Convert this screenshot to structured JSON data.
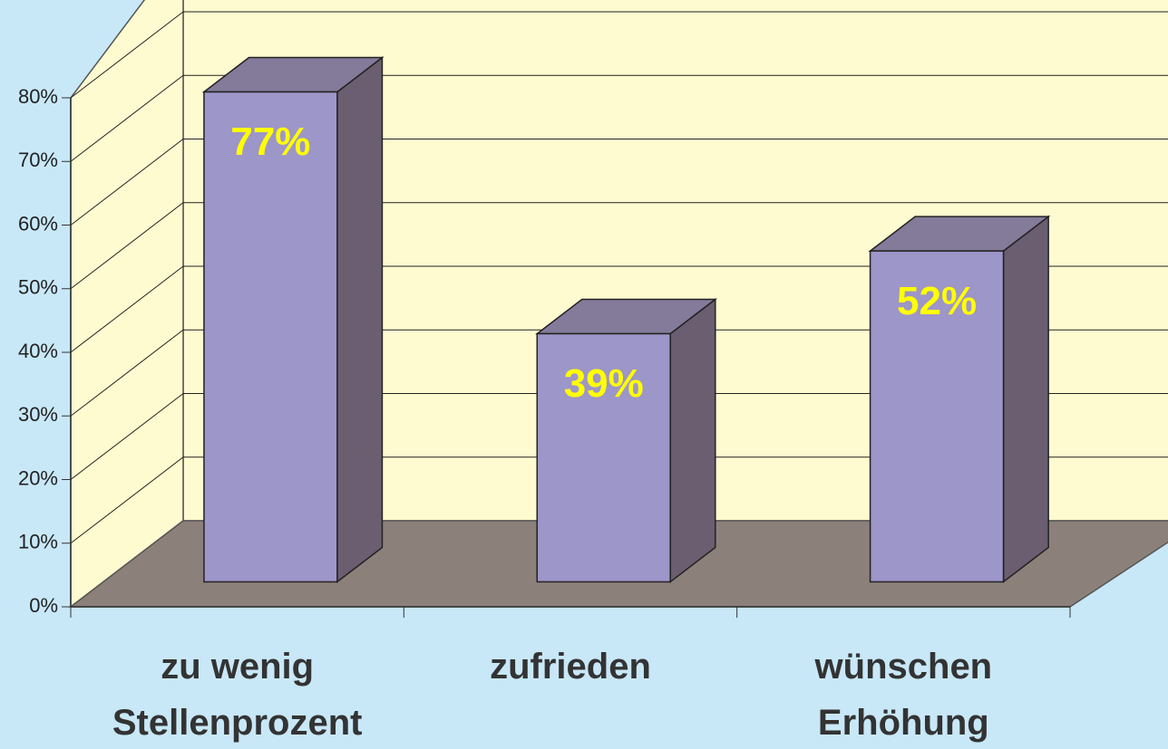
{
  "chart_data": {
    "type": "bar",
    "categories": [
      "zu wenig Stellenprozent",
      "zufrieden",
      "wünschen Erhöhung"
    ],
    "values": [
      77,
      39,
      52
    ],
    "value_labels": [
      "77%",
      "39%",
      "52%"
    ],
    "color": "#9d96c8",
    "ylim": [
      0,
      80
    ],
    "yticks": [
      {
        "value": 0,
        "label": "0%"
      },
      {
        "value": 10,
        "label": "10%"
      },
      {
        "value": 20,
        "label": "20%"
      },
      {
        "value": 30,
        "label": "30%"
      },
      {
        "value": 40,
        "label": "40%"
      },
      {
        "value": 50,
        "label": "50%"
      },
      {
        "value": 60,
        "label": "60%"
      },
      {
        "value": 70,
        "label": "70%"
      },
      {
        "value": 80,
        "label": "80%"
      }
    ],
    "grid": true
  }
}
